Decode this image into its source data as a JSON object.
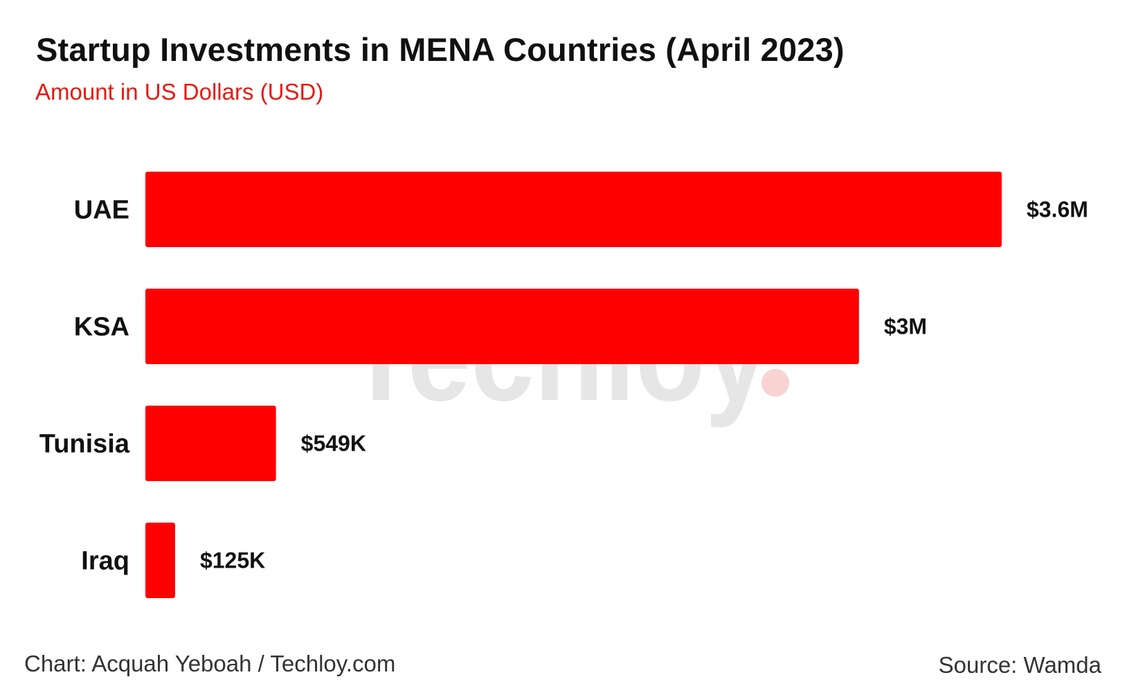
{
  "header": {
    "title": "Startup Investments in MENA Countries (April 2023)",
    "subtitle": "Amount in US Dollars (USD)"
  },
  "watermark": {
    "text": "Techloy"
  },
  "footer": {
    "credit": "Chart: Acquah Yeboah / Techloy.com",
    "source": "Source: Wamda"
  },
  "colors": {
    "bar": "#ff0000",
    "subtitle": "#e8190f",
    "label": "#111111",
    "watermark_text": "#e6e6e6",
    "watermark_dot": "#f9d2d2"
  },
  "chart_data": {
    "type": "bar",
    "orientation": "horizontal",
    "title": "Startup Investments in MENA Countries (April 2023)",
    "subtitle": "Amount in US Dollars (USD)",
    "categories": [
      "UAE",
      "KSA",
      "Tunisia",
      "Iraq"
    ],
    "values": [
      3600000,
      3000000,
      549000,
      125000
    ],
    "data_labels": [
      "$3.6M",
      "$3M",
      "$549K",
      "$125K"
    ],
    "xlim": [
      0,
      3600000
    ],
    "grid": false,
    "legend": "none"
  }
}
